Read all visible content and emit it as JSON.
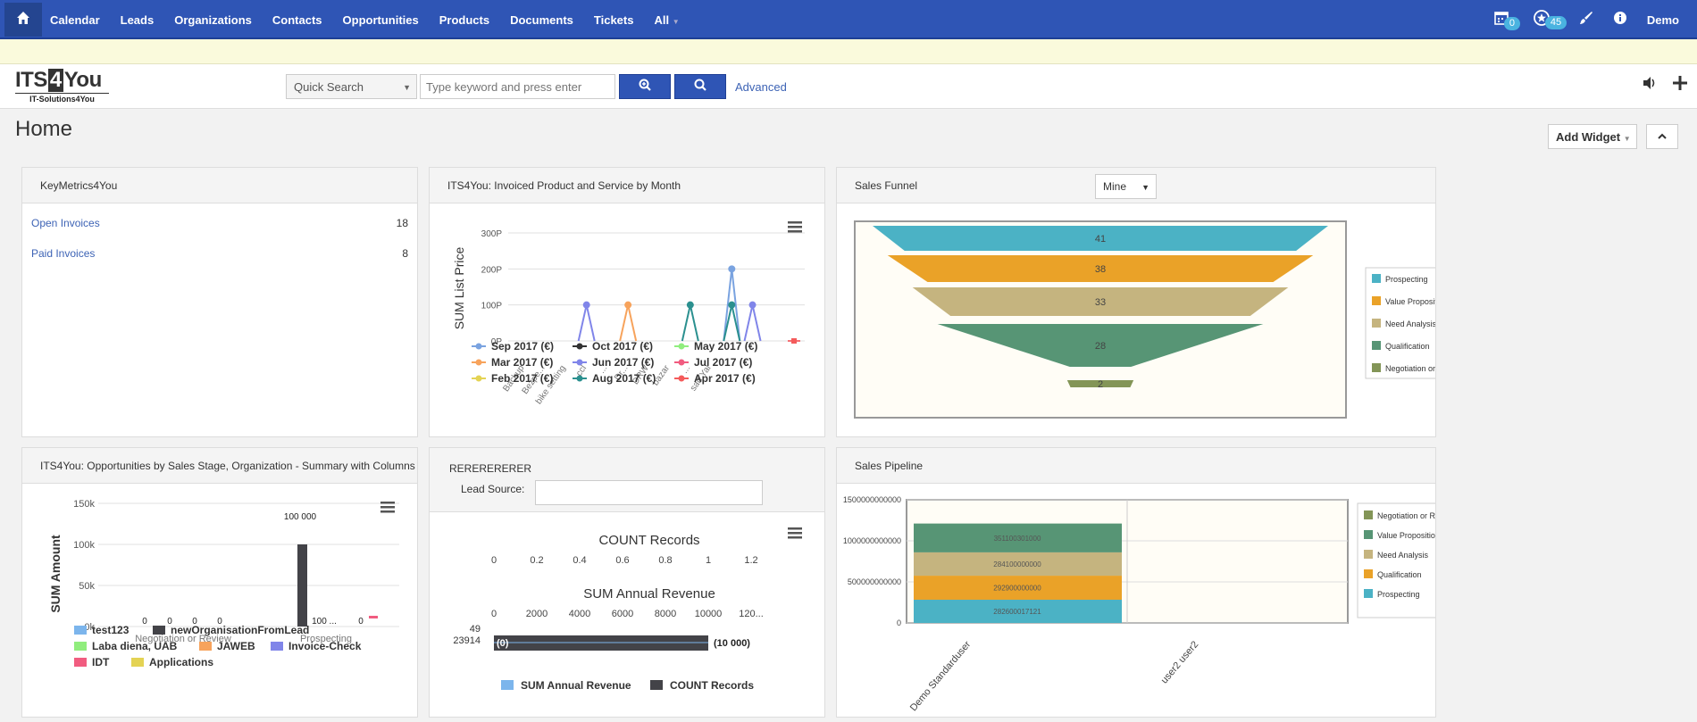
{
  "nav": {
    "items": [
      "Calendar",
      "Leads",
      "Organizations",
      "Contacts",
      "Opportunities",
      "Products",
      "Documents",
      "Tickets",
      "All"
    ],
    "calendar_badge": "0",
    "notifications_badge": "45",
    "user": "Demo"
  },
  "header": {
    "logo_main_left": "ITS",
    "logo_main_mid": "4",
    "logo_main_right": "You",
    "logo_sub": "IT-Solutions4You",
    "quick_search_label": "Quick Search",
    "search_placeholder": "Type keyword and press enter",
    "advanced_label": "Advanced"
  },
  "page": {
    "title": "Home",
    "add_widget_label": "Add Widget"
  },
  "widgets": {
    "keymetrics": {
      "title": "KeyMetrics4You",
      "rows": [
        {
          "label": "Open Invoices",
          "value": "18"
        },
        {
          "label": "Paid Invoices",
          "value": "8"
        }
      ]
    },
    "invoiced": {
      "title": "ITS4You: Invoiced Product and Service by Month"
    },
    "funnel": {
      "title": "Sales Funnel",
      "filter": "Mine"
    },
    "opportunities": {
      "title": "ITS4You: Opportunities by Sales Stage, Organization - Summary with Columns"
    },
    "rerere": {
      "title": "RERERERERER",
      "lead_source_label": "Lead Source:"
    },
    "pipeline": {
      "title": "Sales Pipeline"
    }
  },
  "chart_data": [
    {
      "id": "invoiced-by-month",
      "type": "line",
      "ylabel": "SUM List Price",
      "yticks": [
        "300P",
        "200P",
        "100P",
        "0P"
      ],
      "ylim": [
        0,
        300
      ],
      "x_labels_visible": [
        "Backup",
        "Bezpe...",
        "bike setting",
        "ccl",
        "...",
        "Dr...",
        "DRW",
        "bazar",
        "...",
        "sad Yal"
      ],
      "series": [
        {
          "name": "Sep 2017 (€)",
          "color": "#7aa3e0",
          "points": [
            [
              10,
              200
            ]
          ]
        },
        {
          "name": "Oct 2017 (€)",
          "color": "#333333",
          "points": []
        },
        {
          "name": "May 2017 (€)",
          "color": "#90ee7e",
          "points": []
        },
        {
          "name": "Mar 2017 (€)",
          "color": "#f7a35c",
          "points": [
            [
              5,
              100
            ]
          ]
        },
        {
          "name": "Jun 2017 (€)",
          "color": "#8085e9",
          "points": [
            [
              3,
              100
            ],
            [
              11,
              100
            ]
          ]
        },
        {
          "name": "Jul 2017 (€)",
          "color": "#f15c80",
          "points": [
            [
              13,
              0
            ]
          ]
        },
        {
          "name": "Feb 2017 (€)",
          "color": "#e4d354",
          "points": []
        },
        {
          "name": "Aug 2017 (€)",
          "color": "#2b908f",
          "points": [
            [
              8,
              100
            ],
            [
              10,
              100
            ]
          ]
        },
        {
          "name": "Apr 2017 (€)",
          "color": "#f45b5b",
          "points": [
            [
              13,
              0
            ]
          ]
        }
      ],
      "legend": "bottom"
    },
    {
      "id": "sales-funnel",
      "type": "funnel",
      "categories": [
        "Prospecting",
        "Value Proposition",
        "Need Analysis",
        "Qualification",
        "Negotiation or Review"
      ],
      "legend_labels": [
        "Prospecting",
        "Value Propositic",
        "Need Analysis",
        "Qualification",
        "Negotiation or R"
      ],
      "values": [
        41,
        38,
        33,
        28,
        2
      ],
      "colors": [
        "#4bb2c5",
        "#eaa228",
        "#c5b47f",
        "#579575",
        "#839557"
      ],
      "legend": "right"
    },
    {
      "id": "opportunities-by-stage",
      "type": "bar",
      "ylabel": "SUM Amount",
      "yticks": [
        "150k",
        "100k",
        "50k",
        "0k"
      ],
      "ylim": [
        0,
        150000
      ],
      "categories": [
        "Negotiation or Review",
        "Prospecting"
      ],
      "series": [
        {
          "name": "test123",
          "color": "#7cb5ec",
          "values": [
            0,
            0
          ]
        },
        {
          "name": "newOrganisationFromLead",
          "color": "#434348",
          "values": [
            0,
            100000
          ]
        },
        {
          "name": "Laba diena, UAB",
          "color": "#90ed7d",
          "values": [
            0,
            0
          ]
        },
        {
          "name": "JAWEB",
          "color": "#f7a35c",
          "values": [
            0,
            0
          ]
        },
        {
          "name": "Invoice-Check",
          "color": "#8085e9",
          "values": [
            0,
            0
          ]
        },
        {
          "name": "IDT",
          "color": "#f15c80",
          "values": [
            0,
            0
          ]
        },
        {
          "name": "Applications",
          "color": "#e4d354",
          "values": [
            0,
            0
          ]
        }
      ],
      "data_labels": [
        "0",
        "0",
        "0",
        "0",
        "100 000",
        "100 ...",
        "0"
      ],
      "legend": "bottom"
    },
    {
      "id": "rerere-bar",
      "type": "bar",
      "top_axis_title": "COUNT Records",
      "top_ticks": [
        "0",
        "0.2",
        "0.4",
        "0.6",
        "0.8",
        "1",
        "1.2"
      ],
      "mid_axis_title": "SUM Annual Revenue",
      "mid_ticks": [
        "0",
        "2000",
        "4000",
        "6000",
        "8000",
        "10000",
        "120..."
      ],
      "categories": [
        "49",
        "23914"
      ],
      "series": [
        {
          "name": "SUM Annual Revenue",
          "color": "#7cb5ec",
          "values": [
            0,
            10000
          ]
        },
        {
          "name": "COUNT Records",
          "color": "#434348",
          "values": [
            0,
            1
          ]
        }
      ],
      "data_labels": [
        "(0)",
        "(10 000)"
      ],
      "legend": "bottom"
    },
    {
      "id": "sales-pipeline",
      "type": "bar",
      "stacked": true,
      "yticks": [
        "1500000000000",
        "1000000000000",
        "500000000000",
        "0"
      ],
      "ylim": [
        0,
        1500000000000
      ],
      "categories": [
        "Demo Standarduser",
        "user2 user2"
      ],
      "series": [
        {
          "name": "Prospecting",
          "color": "#4bb2c5",
          "values": [
            282600017121,
            0
          ],
          "label": "282600017121"
        },
        {
          "name": "Qualification",
          "color": "#eaa228",
          "values": [
            292900000000,
            0
          ],
          "label": "292900000000"
        },
        {
          "name": "Need Analysis",
          "color": "#c5b47f",
          "values": [
            284100000000,
            0
          ],
          "label": "284100000000"
        },
        {
          "name": "Value Proposition",
          "color": "#579575",
          "values": [
            351100301000,
            0
          ],
          "label": "351100301000"
        }
      ],
      "legend_labels": [
        "Negotiation or Re",
        "Value Propositio",
        "Need Analysis",
        "Qualification",
        "Prospecting"
      ],
      "legend_colors": [
        "#839557",
        "#579575",
        "#c5b47f",
        "#eaa228",
        "#4bb2c5"
      ],
      "legend": "right"
    }
  ]
}
